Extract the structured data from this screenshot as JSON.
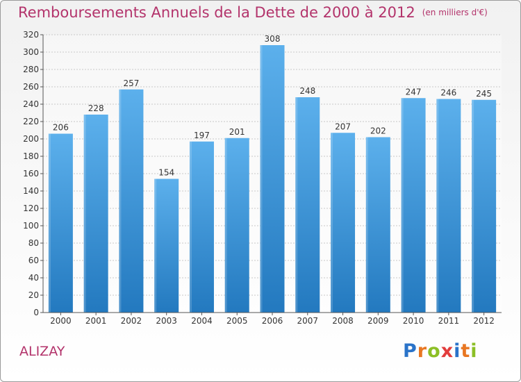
{
  "title": "Remboursements Annuels de la Dette de 2000 à 2012",
  "unit": "(en milliers d'€)",
  "commune": "ALIZAY",
  "logo": {
    "letters": [
      "P",
      "r",
      "o",
      "x",
      "i",
      "t",
      "i"
    ],
    "colors": [
      "#2a73c9",
      "#e87722",
      "#8cbf26",
      "#e23c3c",
      "#2a73c9",
      "#e87722",
      "#8cbf26"
    ]
  },
  "colors": {
    "title": "#b3336b",
    "bar_top": "#5cb0ec",
    "bar_bottom": "#2379bf",
    "axis": "#555555",
    "grid": "#c8c8c8"
  },
  "chart_data": {
    "type": "bar",
    "categories": [
      "2000",
      "2001",
      "2002",
      "2003",
      "2004",
      "2005",
      "2006",
      "2007",
      "2008",
      "2009",
      "2010",
      "2011",
      "2012"
    ],
    "values": [
      206,
      228,
      257,
      154,
      197,
      201,
      308,
      248,
      207,
      202,
      247,
      246,
      245
    ],
    "ylim": [
      0,
      320
    ],
    "yticks": [
      0,
      20,
      40,
      60,
      80,
      100,
      120,
      140,
      160,
      180,
      200,
      220,
      240,
      260,
      280,
      300,
      320
    ],
    "grid": true,
    "data_labels": true
  }
}
